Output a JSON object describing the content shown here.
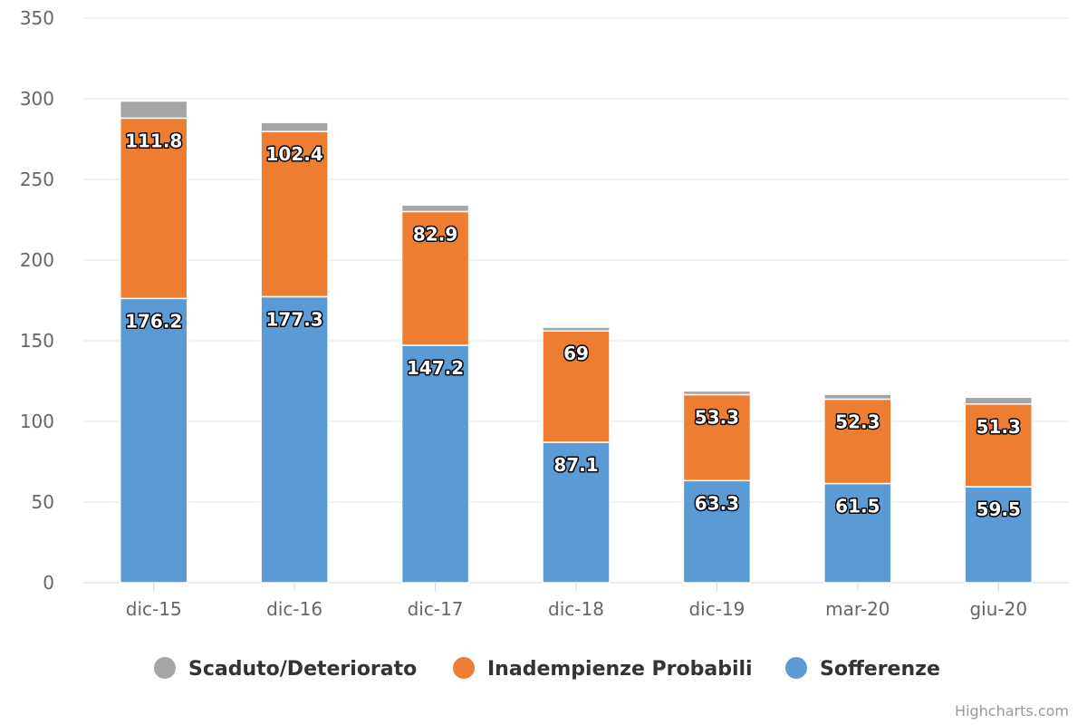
{
  "chart_data": {
    "type": "bar",
    "stacked": true,
    "title": "",
    "xlabel": "",
    "ylabel": "",
    "categories": [
      "dic-15",
      "dic-16",
      "dic-17",
      "dic-18",
      "dic-19",
      "mar-20",
      "giu-20"
    ],
    "ylim": [
      0,
      350
    ],
    "yticks": [
      0,
      50,
      100,
      150,
      200,
      250,
      300,
      350
    ],
    "grid": true,
    "legend_position": "bottom",
    "series": [
      {
        "name": "Sofferenze",
        "color": "#5b9bd5",
        "values": [
          176.2,
          177.3,
          147.2,
          87.1,
          63.3,
          61.5,
          59.5
        ],
        "labels": [
          "176.2",
          "177.3",
          "147.2",
          "87.1",
          "63.3",
          "61.5",
          "59.5"
        ]
      },
      {
        "name": "Inadempienze Probabili",
        "color": "#ed7d31",
        "values": [
          111.8,
          102.4,
          82.9,
          69,
          53.3,
          52.3,
          51.3
        ],
        "labels": [
          "111.8",
          "102.4",
          "82.9",
          "69",
          "53.3",
          "52.3",
          "51.3"
        ]
      },
      {
        "name": "Scaduto/Deteriorato",
        "color": "#a5a5a5",
        "values": [
          10.6,
          5.6,
          4.0,
          2.3,
          2.3,
          3.0,
          4.2
        ]
      }
    ],
    "legend_order": [
      "Scaduto/Deteriorato",
      "Inadempienze Probabili",
      "Sofferenze"
    ]
  },
  "credits": "Highcharts.com"
}
